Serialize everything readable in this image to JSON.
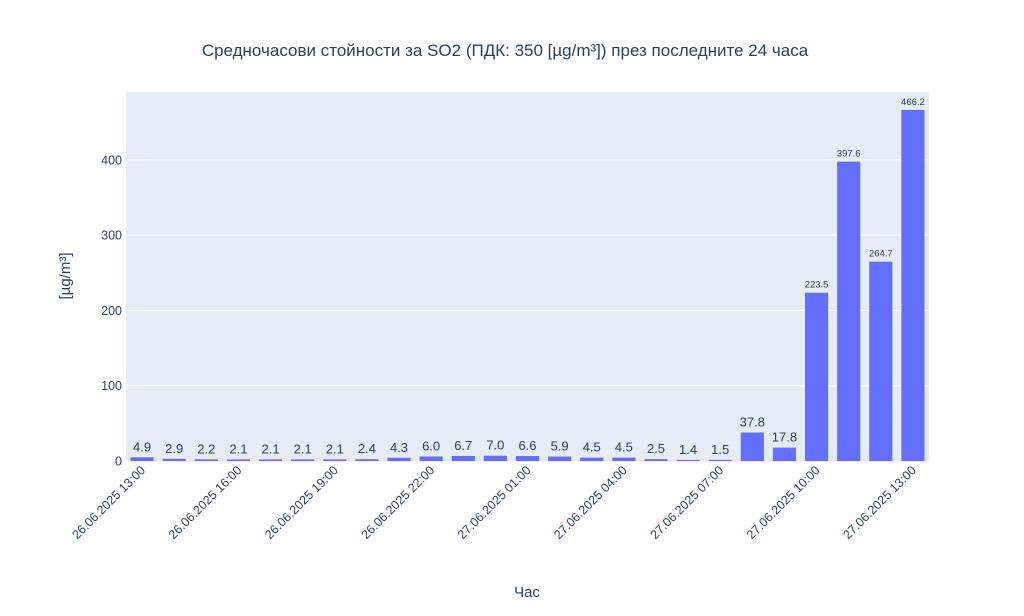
{
  "chart_data": {
    "type": "bar",
    "title": "Средночасови стойности за SO2 (ПДК: 350 [µg/m³]) през последните 24 часа",
    "xlabel": "Час",
    "ylabel": "[µg/m³]",
    "ylim": [
      0,
      490
    ],
    "yticks": [
      0,
      100,
      200,
      300,
      400
    ],
    "grid": true,
    "colors": {
      "bar": "#636efa",
      "plot_bg": "#e5ecf6",
      "grid": "#ffffff",
      "text": "#2a3f5f"
    },
    "xtick_labels": [
      "26.06.2025 13:00",
      "26.06.2025 16:00",
      "26.06.2025 19:00",
      "26.06.2025 22:00",
      "27.06.2025 01:00",
      "27.06.2025 04:00",
      "27.06.2025 07:00",
      "27.06.2025 10:00",
      "27.06.2025 13:00"
    ],
    "categories": [
      "26.06.2025 13:00",
      "26.06.2025 14:00",
      "26.06.2025 15:00",
      "26.06.2025 16:00",
      "26.06.2025 17:00",
      "26.06.2025 18:00",
      "26.06.2025 19:00",
      "26.06.2025 20:00",
      "26.06.2025 21:00",
      "26.06.2025 22:00",
      "26.06.2025 23:00",
      "27.06.2025 00:00",
      "27.06.2025 01:00",
      "27.06.2025 02:00",
      "27.06.2025 03:00",
      "27.06.2025 04:00",
      "27.06.2025 05:00",
      "27.06.2025 06:00",
      "27.06.2025 07:00",
      "27.06.2025 08:00",
      "27.06.2025 09:00",
      "27.06.2025 10:00",
      "27.06.2025 11:00",
      "27.06.2025 12:00",
      "27.06.2025 13:00"
    ],
    "values": [
      4.9,
      2.9,
      2.2,
      2.1,
      2.1,
      2.1,
      2.1,
      2.4,
      4.3,
      6.0,
      6.7,
      7.0,
      6.6,
      5.9,
      4.5,
      4.5,
      2.5,
      1.4,
      1.5,
      37.8,
      17.8,
      223.5,
      397.6,
      264.7,
      466.2
    ],
    "value_labels": [
      "4.9",
      "2.9",
      "2.2",
      "2.1",
      "2.1",
      "2.1",
      "2.1",
      "2.4",
      "4.3",
      "6.0",
      "6.7",
      "7.0",
      "6.6",
      "5.9",
      "4.5",
      "4.5",
      "2.5",
      "1.4",
      "1.5",
      "37.8",
      "17.8",
      "223.5",
      "397.6",
      "264.7",
      "466.2"
    ]
  }
}
